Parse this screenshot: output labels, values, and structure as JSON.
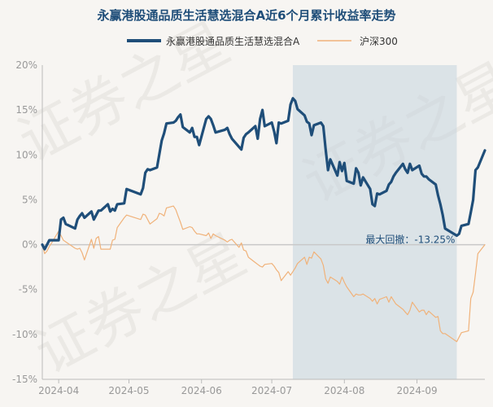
{
  "chart_data": {
    "type": "line",
    "title": "永赢港股通品质生活慧选混合A近6个月累计收益率走势",
    "watermark": "证券之星",
    "ylim": [
      -15,
      20
    ],
    "y_ticks": [
      -15,
      -10,
      -5,
      0,
      5,
      10,
      15,
      20
    ],
    "y_tick_labels": [
      "-15%",
      "-10%",
      "-5%",
      "0%",
      "5%",
      "10%",
      "15%",
      "20%"
    ],
    "x_tick_labels": [
      "2024-04",
      "2024-05",
      "2024-06",
      "2024-07",
      "2024-08",
      "2024-09"
    ],
    "x_tick_dates": [
      "2024-04-01",
      "2024-05-01",
      "2024-06-01",
      "2024-07-01",
      "2024-08-01",
      "2024-09-01"
    ],
    "x_range": [
      "2024-03-25",
      "2024-09-30"
    ],
    "legend_position": "top",
    "grid": false,
    "series": [
      {
        "name": "永赢港股通品质生活慧选混合A",
        "color": "#1f4e79",
        "points": [
          [
            "2024-03-25",
            0.0
          ],
          [
            "2024-03-26",
            -0.5
          ],
          [
            "2024-03-27",
            0.0
          ],
          [
            "2024-03-28",
            0.5
          ],
          [
            "2024-03-29",
            0.5
          ],
          [
            "2024-04-01",
            0.5
          ],
          [
            "2024-04-02",
            2.8
          ],
          [
            "2024-04-03",
            3.0
          ],
          [
            "2024-04-04",
            2.3
          ],
          [
            "2024-04-08",
            1.8
          ],
          [
            "2024-04-09",
            2.8
          ],
          [
            "2024-04-10",
            3.2
          ],
          [
            "2024-04-11",
            3.5
          ],
          [
            "2024-04-12",
            3.0
          ],
          [
            "2024-04-15",
            3.7
          ],
          [
            "2024-04-16",
            2.8
          ],
          [
            "2024-04-17",
            3.3
          ],
          [
            "2024-04-18",
            3.8
          ],
          [
            "2024-04-19",
            3.8
          ],
          [
            "2024-04-22",
            4.5
          ],
          [
            "2024-04-23",
            3.7
          ],
          [
            "2024-04-24",
            4.0
          ],
          [
            "2024-04-25",
            3.8
          ],
          [
            "2024-04-26",
            4.5
          ],
          [
            "2024-04-29",
            4.6
          ],
          [
            "2024-04-30",
            6.2
          ],
          [
            "2024-05-06",
            5.6
          ],
          [
            "2024-05-07",
            6.3
          ],
          [
            "2024-05-08",
            8.0
          ],
          [
            "2024-05-09",
            8.4
          ],
          [
            "2024-05-10",
            8.3
          ],
          [
            "2024-05-13",
            8.6
          ],
          [
            "2024-05-14",
            10.1
          ],
          [
            "2024-05-15",
            11.6
          ],
          [
            "2024-05-16",
            12.4
          ],
          [
            "2024-05-17",
            13.5
          ],
          [
            "2024-05-20",
            13.6
          ],
          [
            "2024-05-21",
            13.8
          ],
          [
            "2024-05-22",
            14.2
          ],
          [
            "2024-05-23",
            14.5
          ],
          [
            "2024-05-24",
            13.1
          ],
          [
            "2024-05-27",
            12.5
          ],
          [
            "2024-05-28",
            13.0
          ],
          [
            "2024-05-29",
            12.0
          ],
          [
            "2024-05-30",
            12.0
          ],
          [
            "2024-05-31",
            11.1
          ],
          [
            "2024-06-03",
            14.0
          ],
          [
            "2024-06-04",
            14.3
          ],
          [
            "2024-06-05",
            14.0
          ],
          [
            "2024-06-06",
            13.3
          ],
          [
            "2024-06-07",
            12.5
          ],
          [
            "2024-06-11",
            12.8
          ],
          [
            "2024-06-12",
            13.0
          ],
          [
            "2024-06-13",
            12.3
          ],
          [
            "2024-06-14",
            11.8
          ],
          [
            "2024-06-17",
            10.9
          ],
          [
            "2024-06-18",
            10.6
          ],
          [
            "2024-06-19",
            11.9
          ],
          [
            "2024-06-20",
            12.3
          ],
          [
            "2024-06-21",
            12.5
          ],
          [
            "2024-06-24",
            13.2
          ],
          [
            "2024-06-25",
            11.8
          ],
          [
            "2024-06-26",
            14.0
          ],
          [
            "2024-06-27",
            15.0
          ],
          [
            "2024-06-28",
            13.2
          ],
          [
            "2024-07-01",
            13.6
          ],
          [
            "2024-07-02",
            12.6
          ],
          [
            "2024-07-03",
            11.3
          ],
          [
            "2024-07-04",
            13.6
          ],
          [
            "2024-07-05",
            13.5
          ],
          [
            "2024-07-08",
            13.8
          ],
          [
            "2024-07-09",
            15.6
          ],
          [
            "2024-07-10",
            16.3
          ],
          [
            "2024-07-11",
            16.0
          ],
          [
            "2024-07-12",
            15.1
          ],
          [
            "2024-07-15",
            14.4
          ],
          [
            "2024-07-16",
            13.7
          ],
          [
            "2024-07-17",
            13.5
          ],
          [
            "2024-07-18",
            12.2
          ],
          [
            "2024-07-19",
            13.3
          ],
          [
            "2024-07-22",
            13.6
          ],
          [
            "2024-07-23",
            13.2
          ],
          [
            "2024-07-24",
            10.6
          ],
          [
            "2024-07-25",
            8.3
          ],
          [
            "2024-07-26",
            9.5
          ],
          [
            "2024-07-29",
            7.7
          ],
          [
            "2024-07-30",
            9.2
          ],
          [
            "2024-07-31",
            8.2
          ],
          [
            "2024-08-01",
            9.1
          ],
          [
            "2024-08-02",
            7.1
          ],
          [
            "2024-08-05",
            6.8
          ],
          [
            "2024-08-06",
            8.5
          ],
          [
            "2024-08-07",
            8.0
          ],
          [
            "2024-08-08",
            6.6
          ],
          [
            "2024-08-09",
            7.5
          ],
          [
            "2024-08-12",
            6.2
          ],
          [
            "2024-08-13",
            4.5
          ],
          [
            "2024-08-14",
            4.3
          ],
          [
            "2024-08-15",
            5.7
          ],
          [
            "2024-08-16",
            5.6
          ],
          [
            "2024-08-19",
            6.0
          ],
          [
            "2024-08-20",
            6.7
          ],
          [
            "2024-08-21",
            7.0
          ],
          [
            "2024-08-22",
            7.6
          ],
          [
            "2024-08-23",
            8.0
          ],
          [
            "2024-08-26",
            9.0
          ],
          [
            "2024-08-27",
            8.4
          ],
          [
            "2024-08-28",
            8.0
          ],
          [
            "2024-08-29",
            9.0
          ],
          [
            "2024-08-30",
            8.3
          ],
          [
            "2024-09-02",
            8.8
          ],
          [
            "2024-09-03",
            7.9
          ],
          [
            "2024-09-04",
            7.6
          ],
          [
            "2024-09-05",
            7.6
          ],
          [
            "2024-09-06",
            7.3
          ],
          [
            "2024-09-09",
            6.7
          ],
          [
            "2024-09-10",
            5.5
          ],
          [
            "2024-09-11",
            4.5
          ],
          [
            "2024-09-12",
            3.3
          ],
          [
            "2024-09-13",
            1.8
          ],
          [
            "2024-09-18",
            1.0
          ],
          [
            "2024-09-19",
            1.2
          ],
          [
            "2024-09-20",
            2.1
          ],
          [
            "2024-09-23",
            2.3
          ],
          [
            "2024-09-24",
            3.6
          ],
          [
            "2024-09-25",
            5.0
          ],
          [
            "2024-09-26",
            8.3
          ],
          [
            "2024-09-27",
            8.6
          ],
          [
            "2024-09-30",
            10.5
          ]
        ]
      },
      {
        "name": "沪深300",
        "color": "#f0b27a",
        "points": [
          [
            "2024-03-25",
            0.0
          ],
          [
            "2024-03-26",
            -1.0
          ],
          [
            "2024-03-27",
            -0.7
          ],
          [
            "2024-03-28",
            -0.2
          ],
          [
            "2024-03-29",
            0.2
          ],
          [
            "2024-04-01",
            1.5
          ],
          [
            "2024-04-02",
            1.0
          ],
          [
            "2024-04-03",
            0.5
          ],
          [
            "2024-04-08",
            -0.4
          ],
          [
            "2024-04-09",
            -0.5
          ],
          [
            "2024-04-10",
            -0.4
          ],
          [
            "2024-04-11",
            -0.9
          ],
          [
            "2024-04-12",
            -1.7
          ],
          [
            "2024-04-15",
            0.6
          ],
          [
            "2024-04-16",
            -0.4
          ],
          [
            "2024-04-17",
            0.7
          ],
          [
            "2024-04-18",
            0.9
          ],
          [
            "2024-04-19",
            -0.5
          ],
          [
            "2024-04-22",
            -0.5
          ],
          [
            "2024-04-23",
            -0.5
          ],
          [
            "2024-04-24",
            0.5
          ],
          [
            "2024-04-25",
            0.6
          ],
          [
            "2024-04-26",
            1.9
          ],
          [
            "2024-04-29",
            3.0
          ],
          [
            "2024-04-30",
            3.3
          ],
          [
            "2024-05-06",
            2.8
          ],
          [
            "2024-05-07",
            3.4
          ],
          [
            "2024-05-08",
            3.3
          ],
          [
            "2024-05-09",
            2.8
          ],
          [
            "2024-05-10",
            2.3
          ],
          [
            "2024-05-13",
            2.9
          ],
          [
            "2024-05-14",
            3.5
          ],
          [
            "2024-05-15",
            3.4
          ],
          [
            "2024-05-16",
            3.2
          ],
          [
            "2024-05-17",
            4.1
          ],
          [
            "2024-05-20",
            4.3
          ],
          [
            "2024-05-21",
            3.9
          ],
          [
            "2024-05-22",
            3.2
          ],
          [
            "2024-05-23",
            2.5
          ],
          [
            "2024-05-24",
            1.7
          ],
          [
            "2024-05-27",
            2.0
          ],
          [
            "2024-05-28",
            1.9
          ],
          [
            "2024-05-29",
            1.5
          ],
          [
            "2024-05-30",
            1.2
          ],
          [
            "2024-05-31",
            1.2
          ],
          [
            "2024-06-03",
            1.0
          ],
          [
            "2024-06-04",
            1.3
          ],
          [
            "2024-06-05",
            0.7
          ],
          [
            "2024-06-06",
            1.2
          ],
          [
            "2024-06-07",
            1.0
          ],
          [
            "2024-06-11",
            0.5
          ],
          [
            "2024-06-12",
            0.3
          ],
          [
            "2024-06-13",
            0.5
          ],
          [
            "2024-06-14",
            0.6
          ],
          [
            "2024-06-17",
            -0.3
          ],
          [
            "2024-06-18",
            0.2
          ],
          [
            "2024-06-19",
            -0.6
          ],
          [
            "2024-06-20",
            -0.7
          ],
          [
            "2024-06-21",
            -1.4
          ],
          [
            "2024-06-24",
            -2.0
          ],
          [
            "2024-06-25",
            -2.2
          ],
          [
            "2024-06-26",
            -2.4
          ],
          [
            "2024-06-27",
            -2.5
          ],
          [
            "2024-06-28",
            -2.2
          ],
          [
            "2024-07-01",
            -2.1
          ],
          [
            "2024-07-02",
            -2.4
          ],
          [
            "2024-07-03",
            -2.8
          ],
          [
            "2024-07-04",
            -3.1
          ],
          [
            "2024-07-05",
            -4.0
          ],
          [
            "2024-07-08",
            -3.0
          ],
          [
            "2024-07-09",
            -3.4
          ],
          [
            "2024-07-10",
            -3.0
          ],
          [
            "2024-07-11",
            -2.6
          ],
          [
            "2024-07-12",
            -2.1
          ],
          [
            "2024-07-15",
            -1.4
          ],
          [
            "2024-07-16",
            -2.2
          ],
          [
            "2024-07-17",
            -1.4
          ],
          [
            "2024-07-18",
            -1.5
          ],
          [
            "2024-07-19",
            -0.8
          ],
          [
            "2024-07-22",
            -1.6
          ],
          [
            "2024-07-23",
            -2.3
          ],
          [
            "2024-07-24",
            -3.8
          ],
          [
            "2024-07-25",
            -4.3
          ],
          [
            "2024-07-26",
            -3.6
          ],
          [
            "2024-07-29",
            -4.1
          ],
          [
            "2024-07-30",
            -4.4
          ],
          [
            "2024-07-31",
            -3.6
          ],
          [
            "2024-08-01",
            -4.2
          ],
          [
            "2024-08-02",
            -4.7
          ],
          [
            "2024-08-05",
            -5.8
          ],
          [
            "2024-08-06",
            -5.5
          ],
          [
            "2024-08-07",
            -5.6
          ],
          [
            "2024-08-08",
            -5.6
          ],
          [
            "2024-08-09",
            -5.5
          ],
          [
            "2024-08-12",
            -6.0
          ],
          [
            "2024-08-13",
            -6.3
          ],
          [
            "2024-08-14",
            -6.0
          ],
          [
            "2024-08-15",
            -6.6
          ],
          [
            "2024-08-16",
            -6.1
          ],
          [
            "2024-08-19",
            -5.8
          ],
          [
            "2024-08-20",
            -6.4
          ],
          [
            "2024-08-21",
            -5.8
          ],
          [
            "2024-08-22",
            -6.2
          ],
          [
            "2024-08-23",
            -6.6
          ],
          [
            "2024-08-26",
            -7.2
          ],
          [
            "2024-08-27",
            -7.5
          ],
          [
            "2024-08-28",
            -7.8
          ],
          [
            "2024-08-29",
            -7.3
          ],
          [
            "2024-08-30",
            -6.4
          ],
          [
            "2024-09-02",
            -7.5
          ],
          [
            "2024-09-03",
            -7.3
          ],
          [
            "2024-09-04",
            -7.3
          ],
          [
            "2024-09-05",
            -7.8
          ],
          [
            "2024-09-06",
            -7.4
          ],
          [
            "2024-09-09",
            -8.1
          ],
          [
            "2024-09-10",
            -8.0
          ],
          [
            "2024-09-11",
            -9.6
          ],
          [
            "2024-09-12",
            -9.9
          ],
          [
            "2024-09-13",
            -9.9
          ],
          [
            "2024-09-18",
            -10.8
          ],
          [
            "2024-09-19",
            -10.3
          ],
          [
            "2024-09-20",
            -9.8
          ],
          [
            "2024-09-23",
            -9.6
          ],
          [
            "2024-09-24",
            -6.0
          ],
          [
            "2024-09-25",
            -5.3
          ],
          [
            "2024-09-26",
            -3.2
          ],
          [
            "2024-09-27",
            -1.0
          ],
          [
            "2024-09-30",
            0.0
          ]
        ]
      }
    ],
    "max_drawdown": {
      "label": "最大回撤：-13.25%",
      "start": "2024-07-10",
      "end": "2024-09-18",
      "fill_color": "#c5d3de"
    }
  }
}
